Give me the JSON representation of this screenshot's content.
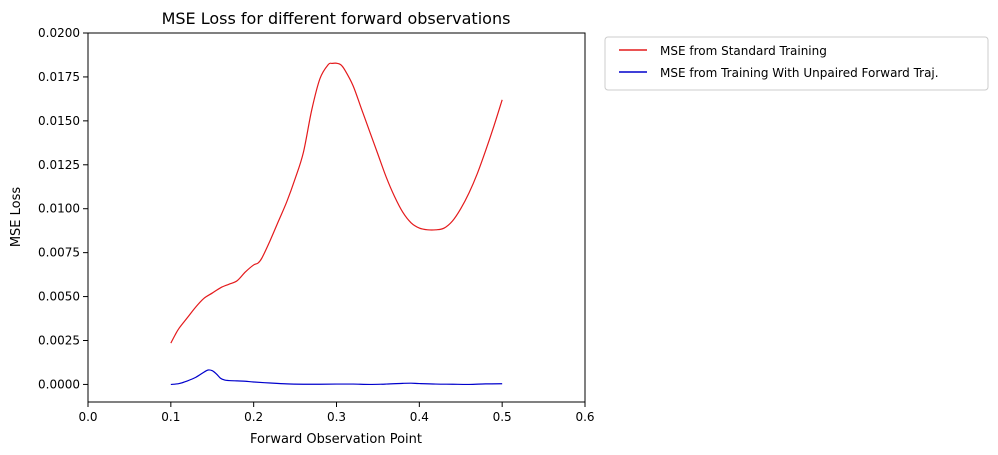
{
  "chart_data": {
    "type": "line",
    "title": "MSE Loss for different forward observations",
    "xlabel": "Forward Observation Point",
    "ylabel": "MSE Loss",
    "xlim": [
      0.0,
      0.6
    ],
    "ylim": [
      -0.001,
      0.02
    ],
    "xticks": [
      0.0,
      0.1,
      0.2,
      0.3,
      0.4,
      0.5,
      0.6
    ],
    "xtick_labels": [
      "0.0",
      "0.1",
      "0.2",
      "0.3",
      "0.4",
      "0.5",
      "0.6"
    ],
    "yticks": [
      0.0,
      0.0025,
      0.005,
      0.0075,
      0.01,
      0.0125,
      0.015,
      0.0175,
      0.02
    ],
    "ytick_labels": [
      "0.0000",
      "0.0025",
      "0.0050",
      "0.0075",
      "0.0100",
      "0.0125",
      "0.0150",
      "0.0175",
      "0.0200"
    ],
    "grid": false,
    "legend_position": "outside-upper-right",
    "series": [
      {
        "name": "MSE from Standard Training",
        "color": "#e41a1c",
        "x": [
          0.1,
          0.105,
          0.11,
          0.12,
          0.13,
          0.14,
          0.15,
          0.16,
          0.17,
          0.18,
          0.19,
          0.2,
          0.205,
          0.21,
          0.22,
          0.23,
          0.24,
          0.25,
          0.26,
          0.27,
          0.28,
          0.29,
          0.295,
          0.3,
          0.305,
          0.31,
          0.32,
          0.33,
          0.34,
          0.35,
          0.36,
          0.37,
          0.38,
          0.39,
          0.4,
          0.41,
          0.42,
          0.43,
          0.44,
          0.45,
          0.46,
          0.47,
          0.48,
          0.49,
          0.5
        ],
        "y": [
          0.00235,
          0.0028,
          0.0032,
          0.0038,
          0.0044,
          0.0049,
          0.0052,
          0.0055,
          0.0057,
          0.0059,
          0.0064,
          0.0068,
          0.0069,
          0.0072,
          0.0082,
          0.0093,
          0.0104,
          0.0117,
          0.0132,
          0.0156,
          0.0174,
          0.0182,
          0.01827,
          0.01828,
          0.0182,
          0.0179,
          0.017,
          0.0157,
          0.0144,
          0.0131,
          0.0118,
          0.0107,
          0.0098,
          0.0092,
          0.0089,
          0.0088,
          0.0088,
          0.0089,
          0.0093,
          0.01,
          0.0109,
          0.012,
          0.0133,
          0.0147,
          0.0162
        ]
      },
      {
        "name": "MSE from Training With Unpaired Forward Traj.",
        "color": "#0000cc",
        "x": [
          0.1,
          0.11,
          0.12,
          0.13,
          0.14,
          0.145,
          0.15,
          0.155,
          0.16,
          0.165,
          0.17,
          0.18,
          0.19,
          0.2,
          0.22,
          0.24,
          0.26,
          0.28,
          0.3,
          0.32,
          0.34,
          0.36,
          0.38,
          0.39,
          0.4,
          0.42,
          0.44,
          0.46,
          0.48,
          0.5
        ],
        "y": [
          0.0,
          5e-05,
          0.0002,
          0.0004,
          0.0007,
          0.00082,
          0.00078,
          0.0006,
          0.00035,
          0.00025,
          0.00022,
          0.0002,
          0.00018,
          0.00014,
          8e-05,
          3e-05,
          1e-05,
          1e-05,
          2e-05,
          2e-05,
          0.0,
          2e-05,
          6e-05,
          7e-05,
          5e-05,
          2e-05,
          1e-05,
          0.0,
          3e-05,
          4e-05
        ]
      }
    ]
  }
}
